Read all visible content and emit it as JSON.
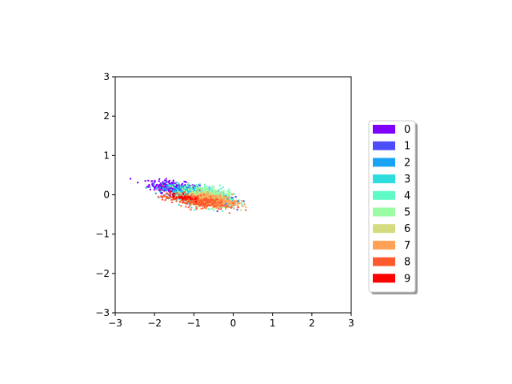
{
  "chart_data": {
    "type": "scatter",
    "title": "",
    "xlabel": "",
    "ylabel": "",
    "xlim": [
      -3,
      3
    ],
    "ylim": [
      -3,
      3
    ],
    "xticks": [
      -3,
      -2,
      -1,
      0,
      1,
      2,
      3
    ],
    "yticks": [
      -3,
      -2,
      -1,
      0,
      1,
      2,
      3
    ],
    "xtick_labels": [
      "−3",
      "−2",
      "−1",
      "0",
      "1",
      "2",
      "3"
    ],
    "ytick_labels": [
      "−3",
      "−2",
      "−1",
      "0",
      "1",
      "2",
      "3"
    ],
    "grid": false,
    "legend_position": "right, outside the plot area",
    "series": [
      {
        "name": "0",
        "color": "#8000ff",
        "center": [
          -1.5,
          0.18
        ],
        "spread": [
          0.32,
          0.08
        ],
        "points": 300
      },
      {
        "name": "1",
        "color": "#4d4dfb",
        "center": [
          -0.3,
          -0.15
        ],
        "spread": [
          0.18,
          0.07
        ],
        "points": 300
      },
      {
        "name": "2",
        "color": "#1aa3f2",
        "center": [
          -1.1,
          0.05
        ],
        "spread": [
          0.35,
          0.1
        ],
        "points": 250
      },
      {
        "name": "3",
        "color": "#2ddcdc",
        "center": [
          -0.9,
          0.0
        ],
        "spread": [
          0.35,
          0.11
        ],
        "points": 250
      },
      {
        "name": "4",
        "color": "#60fac6",
        "center": [
          -0.6,
          -0.08
        ],
        "spread": [
          0.3,
          0.12
        ],
        "points": 250
      },
      {
        "name": "5",
        "color": "#9cfca4",
        "center": [
          -0.7,
          0.0
        ],
        "spread": [
          0.3,
          0.1
        ],
        "points": 250
      },
      {
        "name": "6",
        "color": "#d4dc7f",
        "center": [
          -0.6,
          -0.1
        ],
        "spread": [
          0.28,
          0.09
        ],
        "points": 250
      },
      {
        "name": "7",
        "color": "#ffa256",
        "center": [
          -0.5,
          -0.15
        ],
        "spread": [
          0.3,
          0.08
        ],
        "points": 250
      },
      {
        "name": "8",
        "color": "#ff5a2d",
        "center": [
          -1.0,
          -0.15
        ],
        "spread": [
          0.4,
          0.08
        ],
        "points": 250
      },
      {
        "name": "9",
        "color": "#ff0000",
        "center": [
          -1.3,
          -0.05
        ],
        "spread": [
          0.15,
          0.05
        ],
        "points": 40
      }
    ]
  }
}
